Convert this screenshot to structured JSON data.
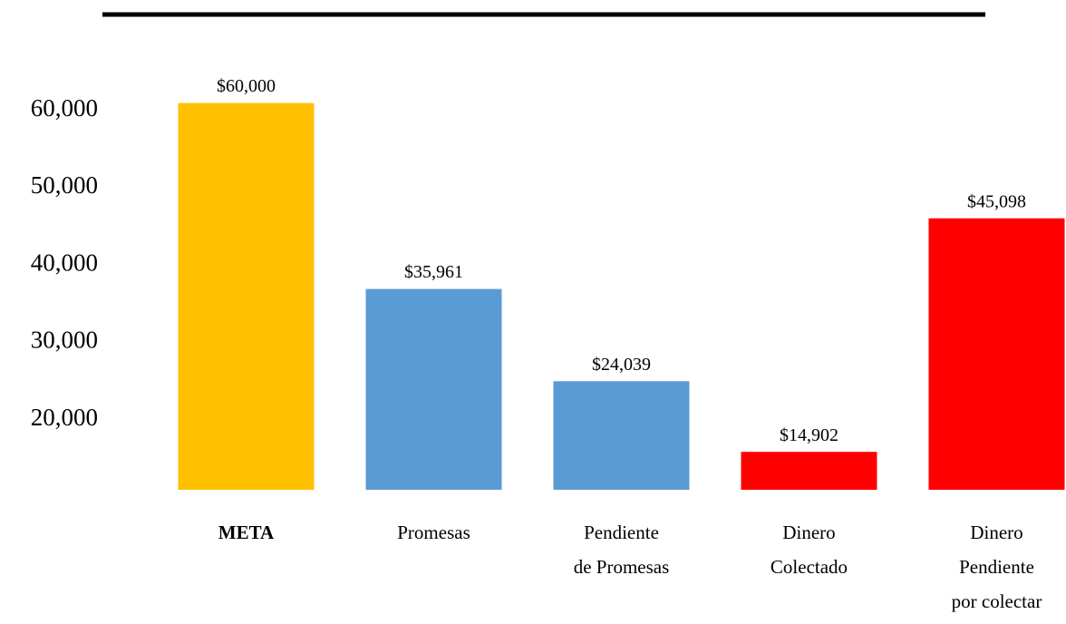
{
  "chart_data": {
    "type": "bar",
    "categories": [
      "META",
      "Promesas",
      "Pendiente\nde Promesas",
      "Dinero\nColectado",
      "Dinero\nPendiente\npor colectar"
    ],
    "values": [
      60000,
      35961,
      24039,
      14902,
      45098
    ],
    "value_labels": [
      "$60,000",
      "$35,961",
      "$24,039",
      "$14,902",
      "$45,098"
    ],
    "colors": [
      "#ffc000",
      "#5b9bd5",
      "#5b9bd5",
      "#ff0000",
      "#ff0000"
    ],
    "ylim": [
      10000,
      65000
    ],
    "yticks": [
      {
        "value": 20000,
        "label": "20,000"
      },
      {
        "value": 30000,
        "label": "30,000"
      },
      {
        "value": 40000,
        "label": "40,000"
      },
      {
        "value": 50000,
        "label": "50,000"
      },
      {
        "value": 60000,
        "label": "60,000"
      }
    ],
    "grid": false
  }
}
